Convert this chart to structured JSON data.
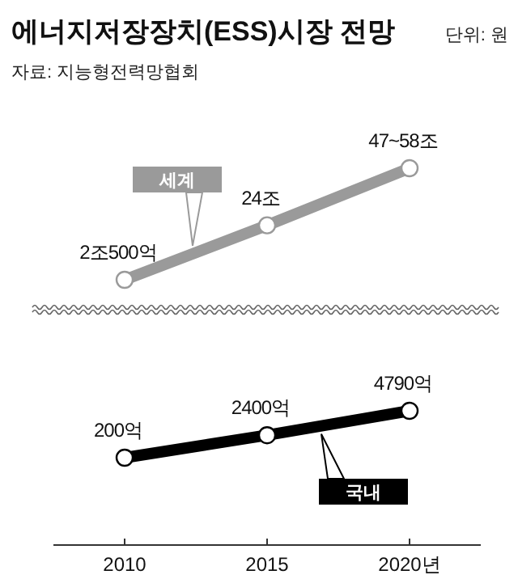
{
  "chart_data": [
    {
      "type": "line",
      "title": "에너지저장장치(ESS)시장 전망",
      "subtitle": "자료: 지능형전력망협회",
      "annotations": [
        "단위: 원"
      ],
      "categories": [
        null,
        null,
        null
      ],
      "legend": "top left",
      "marker": "circle",
      "series": [
        {
          "name": "세계",
          "color": "#9a9a9a",
          "values": [
            2.05,
            24,
            47
          ],
          "value_labels": [
            "2조500억",
            "24조",
            "47~58조"
          ]
        }
      ]
    },
    {
      "type": "line",
      "categories": [
        "2010",
        "2015",
        "2020년"
      ],
      "legend": "bottom right",
      "marker": "circle",
      "series": [
        {
          "name": "국내",
          "color": "#000000",
          "values": [
            200,
            2400,
            4790
          ],
          "value_labels": [
            "200억",
            "2400억",
            "4790억"
          ]
        }
      ]
    }
  ]
}
